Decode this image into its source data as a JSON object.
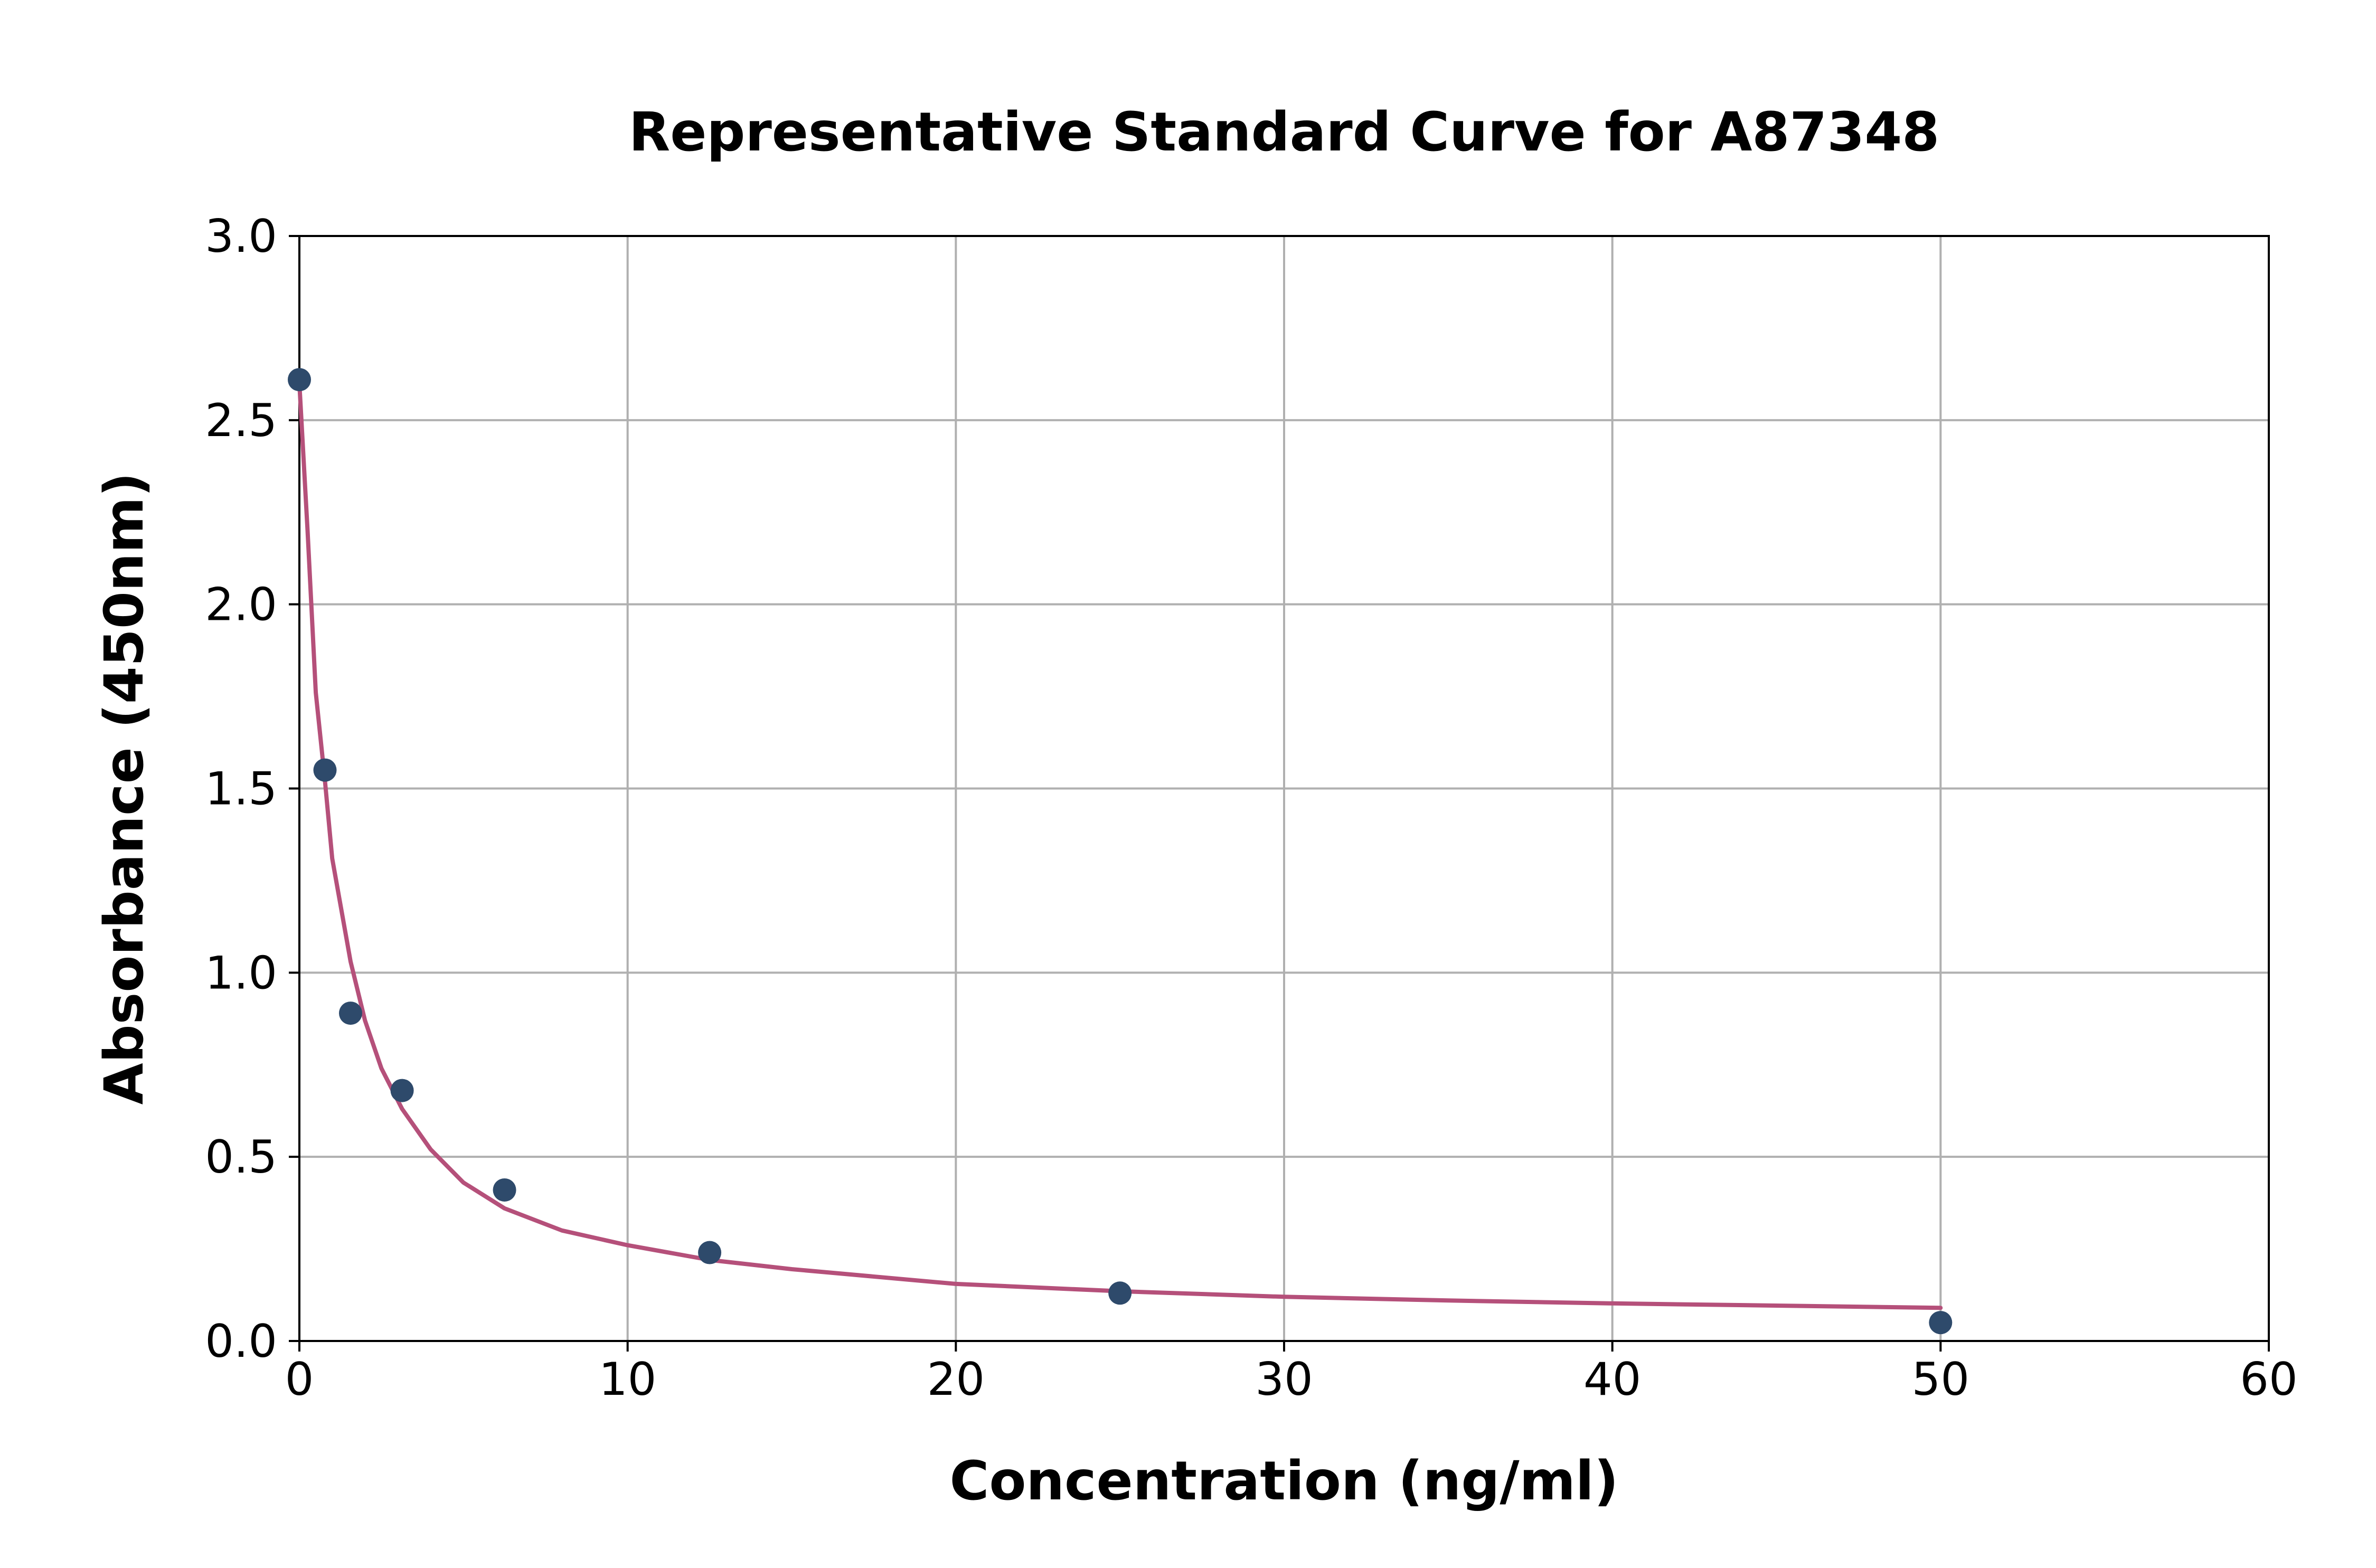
{
  "chart_data": {
    "type": "scatter",
    "title": "Representative Standard Curve for A87348",
    "xlabel": "Concentration (ng/ml)",
    "ylabel": "Absorbance (450nm)",
    "xlim": [
      0,
      60
    ],
    "ylim": [
      0,
      3.0
    ],
    "xticks": [
      0,
      10,
      20,
      30,
      40,
      50,
      60
    ],
    "xtick_labels": [
      "0",
      "10",
      "20",
      "30",
      "40",
      "50",
      "60"
    ],
    "yticks": [
      0,
      0.5,
      1.0,
      1.5,
      2.0,
      2.5,
      3.0
    ],
    "ytick_labels": [
      "0.0",
      "0.5",
      "1.0",
      "1.5",
      "2.0",
      "2.5",
      "3.0"
    ],
    "grid": true,
    "series": [
      {
        "kind": "points",
        "color": "#2e4a6b",
        "x": [
          0,
          0.78,
          1.56,
          3.13,
          6.25,
          12.5,
          25,
          50
        ],
        "y": [
          2.61,
          1.55,
          0.89,
          0.68,
          0.41,
          0.24,
          0.13,
          0.05
        ]
      },
      {
        "kind": "fit-curve",
        "color": "#b5507a",
        "x": [
          0,
          0.25,
          0.5,
          0.78,
          1.0,
          1.56,
          2.0,
          2.5,
          3.13,
          4.0,
          5.0,
          6.25,
          8.0,
          10.0,
          12.5,
          15.0,
          20.0,
          25.0,
          30.0,
          35.0,
          40.0,
          45.0,
          50.0
        ],
        "y": [
          2.6,
          2.2,
          1.76,
          1.52,
          1.31,
          1.03,
          0.87,
          0.74,
          0.63,
          0.52,
          0.43,
          0.36,
          0.3,
          0.26,
          0.22,
          0.195,
          0.155,
          0.135,
          0.12,
          0.11,
          0.102,
          0.096,
          0.09
        ]
      }
    ]
  }
}
